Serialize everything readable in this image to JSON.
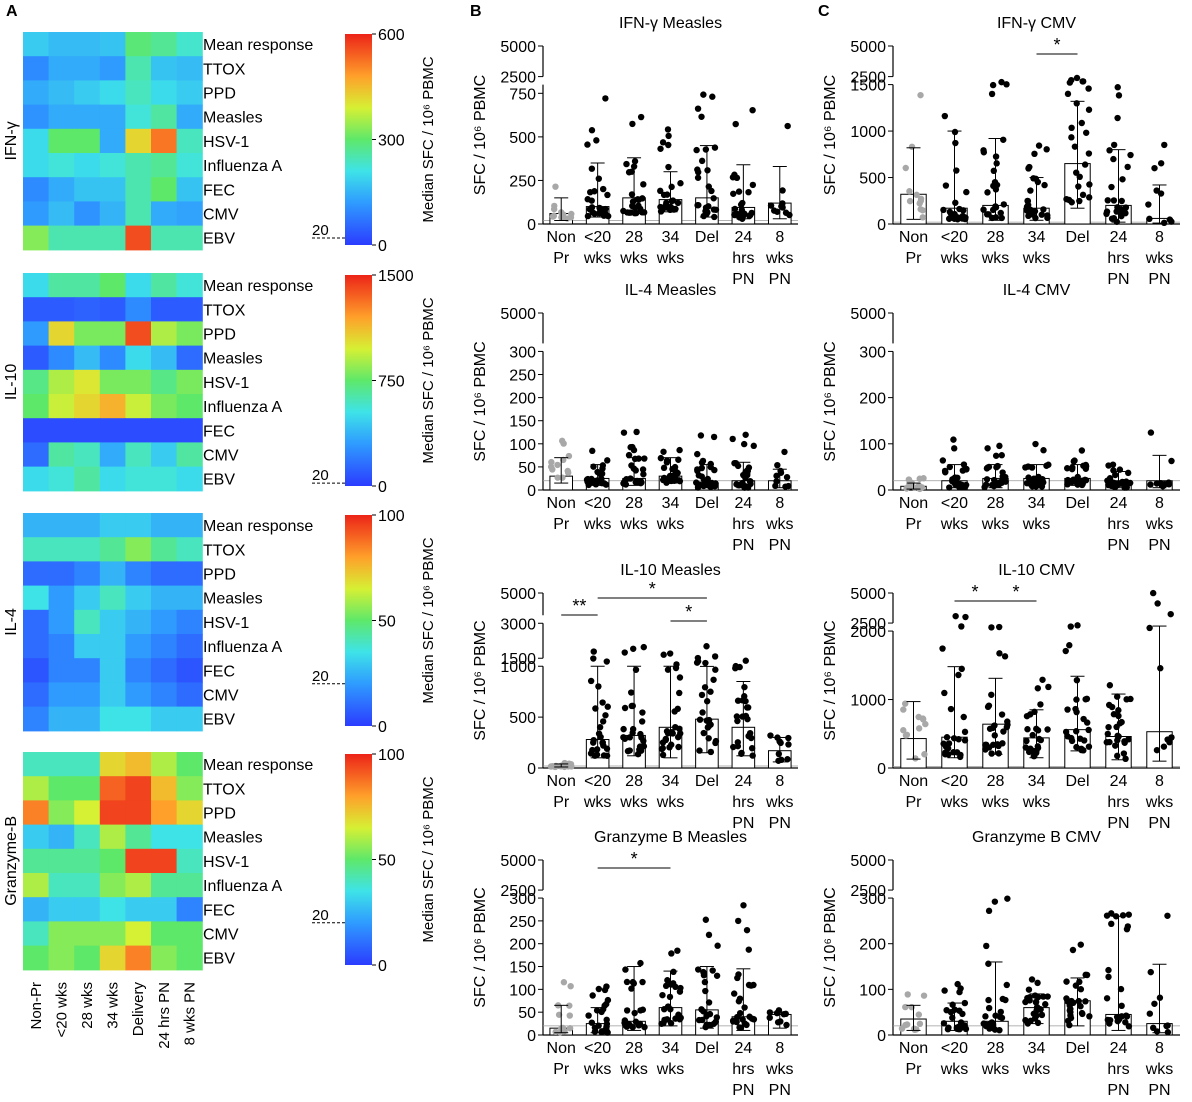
{
  "panel_letters": [
    "A",
    "B",
    "C"
  ],
  "heatmap_rows": [
    "Mean response",
    "TTOX",
    "PPD",
    "Measles",
    "HSV-1",
    "Influenza A",
    "FEC",
    "CMV",
    "EBV"
  ],
  "heatmap_cols": [
    "Non-Pr",
    "<20 wks",
    "28 wks",
    "34 wks",
    "Delivery",
    "24 hrs PN",
    "8 wks PN"
  ],
  "colorbar_label": "Median SFC / 10⁶ PBMC",
  "threshold_label": "20",
  "bar_groups": [
    "Non Pr",
    "<20 wks",
    "28 wks",
    "34 wks",
    "Del",
    "24 hrs PN",
    "8 wks PN"
  ],
  "bar_ylabel": "SFC / 10⁶ PBMC",
  "chart_data": [
    {
      "type": "heatmap",
      "panel": "A",
      "cytokine": "IFN-γ",
      "colorbar": {
        "min": 0,
        "max": 600,
        "ticks": [
          600,
          300,
          0
        ],
        "threshold": 20
      },
      "values": [
        [
          180,
          160,
          160,
          170,
          290,
          270,
          230
        ],
        [
          100,
          140,
          140,
          120,
          250,
          170,
          160
        ],
        [
          140,
          160,
          180,
          200,
          240,
          200,
          180
        ],
        [
          110,
          140,
          140,
          140,
          220,
          260,
          140
        ],
        [
          200,
          300,
          300,
          140,
          420,
          520,
          240
        ],
        [
          200,
          220,
          200,
          220,
          250,
          270,
          220
        ],
        [
          100,
          140,
          170,
          170,
          250,
          300,
          170
        ],
        [
          120,
          160,
          110,
          150,
          250,
          140,
          130
        ],
        [
          330,
          250,
          250,
          250,
          560,
          250,
          250
        ]
      ]
    },
    {
      "type": "heatmap",
      "panel": "A",
      "cytokine": "IL-10",
      "colorbar": {
        "min": 0,
        "max": 1500,
        "ticks": [
          1500,
          750,
          0
        ],
        "threshold": 20
      },
      "values": [
        [
          500,
          650,
          650,
          750,
          500,
          650,
          550
        ],
        [
          100,
          100,
          120,
          100,
          250,
          100,
          100
        ],
        [
          300,
          1050,
          800,
          800,
          1400,
          900,
          800
        ],
        [
          100,
          250,
          400,
          250,
          500,
          400,
          150
        ],
        [
          700,
          900,
          1000,
          800,
          800,
          700,
          800
        ],
        [
          750,
          950,
          1050,
          1150,
          950,
          800,
          750
        ],
        [
          50,
          50,
          50,
          50,
          50,
          50,
          50
        ],
        [
          150,
          650,
          600,
          350,
          600,
          450,
          650
        ],
        [
          500,
          550,
          650,
          500,
          550,
          550,
          500
        ]
      ]
    },
    {
      "type": "heatmap",
      "panel": "A",
      "cytokine": "IL-4",
      "colorbar": {
        "min": 0,
        "max": 100,
        "ticks": [
          100,
          50,
          0
        ],
        "threshold": 20
      },
      "values": [
        [
          25,
          25,
          25,
          30,
          30,
          25,
          25
        ],
        [
          40,
          40,
          40,
          45,
          55,
          45,
          40
        ],
        [
          10,
          10,
          15,
          25,
          15,
          10,
          10
        ],
        [
          35,
          20,
          30,
          40,
          30,
          25,
          25
        ],
        [
          10,
          20,
          40,
          30,
          25,
          20,
          15
        ],
        [
          10,
          15,
          30,
          30,
          20,
          15,
          10
        ],
        [
          5,
          15,
          15,
          30,
          15,
          10,
          5
        ],
        [
          10,
          20,
          20,
          30,
          20,
          15,
          10
        ],
        [
          15,
          25,
          25,
          35,
          35,
          30,
          30
        ]
      ]
    },
    {
      "type": "heatmap",
      "panel": "A",
      "cytokine": "Granzyme-B",
      "colorbar": {
        "min": 0,
        "max": 100,
        "ticks": [
          100,
          50,
          0
        ],
        "threshold": 20
      },
      "values": [
        [
          40,
          40,
          40,
          70,
          75,
          60,
          50
        ],
        [
          60,
          50,
          50,
          90,
          95,
          75,
          55
        ],
        [
          85,
          55,
          65,
          95,
          95,
          80,
          70
        ],
        [
          30,
          25,
          40,
          60,
          45,
          35,
          35
        ],
        [
          45,
          45,
          45,
          50,
          95,
          95,
          40
        ],
        [
          60,
          40,
          40,
          55,
          60,
          45,
          45
        ],
        [
          25,
          30,
          30,
          35,
          30,
          30,
          15
        ],
        [
          40,
          55,
          55,
          55,
          65,
          50,
          50
        ],
        [
          50,
          55,
          50,
          70,
          85,
          55,
          50
        ]
      ]
    },
    {
      "type": "bar",
      "panel": "B",
      "title": "IFN-γ Measles",
      "ylabel": "SFC / 10⁶ PBMC",
      "yaxis": {
        "segments": [
          {
            "min": 0,
            "max": 800,
            "ticks": [
              0,
              250,
              500,
              750
            ]
          },
          {
            "min": 2500,
            "max": 5000,
            "ticks": [
              2500,
              5000
            ]
          }
        ],
        "top_tick": 800
      },
      "categories": [
        "Non Pr",
        "<20 wks",
        "28 wks",
        "34 wks",
        "Del",
        "24 hrs PN",
        "8 wks PN"
      ],
      "medians": [
        60,
        100,
        150,
        140,
        150,
        95,
        120
      ],
      "iqr": [
        [
          20,
          150
        ],
        [
          40,
          350
        ],
        [
          60,
          380
        ],
        [
          70,
          300
        ],
        [
          40,
          450
        ],
        [
          30,
          340
        ],
        [
          30,
          330
        ]
      ],
      "significance": []
    },
    {
      "type": "bar",
      "panel": "C",
      "title": "IFN-γ CMV",
      "ylabel": "SFC / 10⁶ PBMC",
      "yaxis": {
        "segments": [
          {
            "min": 0,
            "max": 1500,
            "ticks": [
              0,
              500,
              1000,
              1500
            ]
          },
          {
            "min": 2500,
            "max": 5000,
            "ticks": [
              2500,
              5000
            ]
          }
        ]
      },
      "categories": [
        "Non Pr",
        "<20 wks",
        "28 wks",
        "34 wks",
        "Del",
        "24 hrs PN",
        "8 wks PN"
      ],
      "medians": [
        320,
        170,
        200,
        170,
        650,
        200,
        60
      ],
      "iqr": [
        [
          50,
          820
        ],
        [
          40,
          1000
        ],
        [
          40,
          920
        ],
        [
          40,
          500
        ],
        [
          170,
          1320
        ],
        [
          20,
          800
        ],
        [
          10,
          420
        ]
      ],
      "significance": [
        {
          "from": 3,
          "to": 4,
          "label": "*"
        }
      ]
    },
    {
      "type": "bar",
      "panel": "B",
      "title": "IL-4 Measles",
      "ylabel": "SFC / 10⁶ PBMC",
      "yaxis": {
        "segments": [
          {
            "min": 0,
            "max": 300,
            "ticks": [
              0,
              50,
              100,
              150,
              200,
              250,
              300
            ]
          },
          {
            "min": 5000,
            "max": 5000,
            "ticks": [
              5000
            ]
          }
        ]
      },
      "categories": [
        "Non Pr",
        "<20 wks",
        "28 wks",
        "34 wks",
        "Del",
        "24 hrs PN",
        "8 wks PN"
      ],
      "medians": [
        30,
        25,
        25,
        30,
        15,
        20,
        20
      ],
      "iqr": [
        [
          15,
          70
        ],
        [
          10,
          55
        ],
        [
          10,
          70
        ],
        [
          15,
          70
        ],
        [
          5,
          55
        ],
        [
          5,
          60
        ],
        [
          5,
          45
        ]
      ],
      "significance": []
    },
    {
      "type": "bar",
      "panel": "C",
      "title": "IL-4 CMV",
      "ylabel": "SFC / 10⁶ PBMC",
      "yaxis": {
        "segments": [
          {
            "min": 0,
            "max": 300,
            "ticks": [
              0,
              100,
              200,
              300
            ]
          },
          {
            "min": 5000,
            "max": 5000,
            "ticks": [
              5000
            ]
          }
        ]
      },
      "categories": [
        "Non Pr",
        "<20 wks",
        "28 wks",
        "34 wks",
        "Del",
        "24 hrs PN",
        "8 wks PN"
      ],
      "medians": [
        8,
        20,
        25,
        25,
        25,
        20,
        20
      ],
      "iqr": [
        [
          2,
          15
        ],
        [
          5,
          55
        ],
        [
          5,
          55
        ],
        [
          5,
          55
        ],
        [
          10,
          55
        ],
        [
          5,
          40
        ],
        [
          5,
          75
        ]
      ],
      "significance": []
    },
    {
      "type": "bar",
      "panel": "B",
      "title": "IL-10 Measles",
      "ylabel": "SFC / 10⁶ PBMC",
      "yaxis": {
        "segments": [
          {
            "min": 0,
            "max": 1000,
            "ticks": [
              0,
              500,
              1000
            ]
          },
          {
            "min": 1500,
            "max": 3000,
            "ticks": [
              1500,
              3000
            ]
          },
          {
            "min": 5000,
            "max": 5000,
            "ticks": [
              5000
            ]
          }
        ]
      },
      "categories": [
        "Non Pr",
        "<20 wks",
        "28 wks",
        "34 wks",
        "Del",
        "24 hrs PN",
        "8 wks PN"
      ],
      "medians": [
        20,
        280,
        320,
        400,
        480,
        400,
        170
      ],
      "iqr": [
        [
          10,
          40
        ],
        [
          100,
          1000
        ],
        [
          120,
          1000
        ],
        [
          100,
          1000
        ],
        [
          150,
          1150
        ],
        [
          120,
          850
        ],
        [
          60,
          300
        ]
      ],
      "significance": [
        {
          "from": 0,
          "to": 1,
          "label": "**"
        },
        {
          "from": 1,
          "to": 4,
          "label": "*"
        },
        {
          "from": 3,
          "to": 4,
          "label": "*"
        }
      ]
    },
    {
      "type": "bar",
      "panel": "C",
      "title": "IL-10 CMV",
      "ylabel": "SFC / 10⁶ PBMC",
      "yaxis": {
        "segments": [
          {
            "min": 0,
            "max": 2000,
            "ticks": [
              0,
              1000,
              2000
            ]
          },
          {
            "min": 2500,
            "max": 5000,
            "ticks": [
              2500,
              5000
            ]
          }
        ]
      },
      "categories": [
        "Non Pr",
        "<20 wks",
        "28 wks",
        "34 wks",
        "Del",
        "24 hrs PN",
        "8 wks PN"
      ],
      "medians": [
        430,
        450,
        640,
        440,
        560,
        460,
        530
      ],
      "iqr": [
        [
          130,
          970
        ],
        [
          150,
          1480
        ],
        [
          200,
          1310
        ],
        [
          150,
          850
        ],
        [
          250,
          1340
        ],
        [
          120,
          1080
        ],
        [
          100,
          2250
        ]
      ],
      "significance": [
        {
          "from": 1,
          "to": 2,
          "label": "*"
        },
        {
          "from": 2,
          "to": 3,
          "label": "*"
        }
      ]
    },
    {
      "type": "bar",
      "panel": "B",
      "title": "Granzyme B Measles",
      "ylabel": "SFC / 10⁶ PBMC",
      "yaxis": {
        "segments": [
          {
            "min": 0,
            "max": 300,
            "ticks": [
              0,
              50,
              100,
              150,
              200,
              250,
              300
            ]
          },
          {
            "min": 2500,
            "max": 5000,
            "ticks": [
              2500,
              5000
            ]
          }
        ]
      },
      "categories": [
        "Non Pr",
        "<20 wks",
        "28 wks",
        "34 wks",
        "Del",
        "24 hrs PN",
        "8 wks PN"
      ],
      "medians": [
        15,
        25,
        30,
        60,
        55,
        40,
        45
      ],
      "iqr": [
        [
          5,
          65
        ],
        [
          5,
          60
        ],
        [
          10,
          150
        ],
        [
          20,
          140
        ],
        [
          15,
          150
        ],
        [
          10,
          145
        ],
        [
          15,
          50
        ]
      ],
      "significance": [
        {
          "from": 1,
          "to": 3,
          "label": "*"
        }
      ]
    },
    {
      "type": "bar",
      "panel": "C",
      "title": "Granzyme B CMV",
      "ylabel": "SFC / 10⁶ PBMC",
      "yaxis": {
        "segments": [
          {
            "min": 0,
            "max": 300,
            "ticks": [
              0,
              100,
              200,
              300
            ]
          },
          {
            "min": 2500,
            "max": 5000,
            "ticks": [
              2500,
              5000
            ]
          }
        ]
      },
      "categories": [
        "Non Pr",
        "<20 wks",
        "28 wks",
        "34 wks",
        "Del",
        "24 hrs PN",
        "8 wks PN"
      ],
      "medians": [
        35,
        30,
        30,
        60,
        75,
        45,
        25
      ],
      "iqr": [
        [
          10,
          65
        ],
        [
          10,
          70
        ],
        [
          10,
          160
        ],
        [
          25,
          90
        ],
        [
          20,
          125
        ],
        [
          10,
          260
        ],
        [
          5,
          155
        ]
      ],
      "significance": []
    }
  ]
}
